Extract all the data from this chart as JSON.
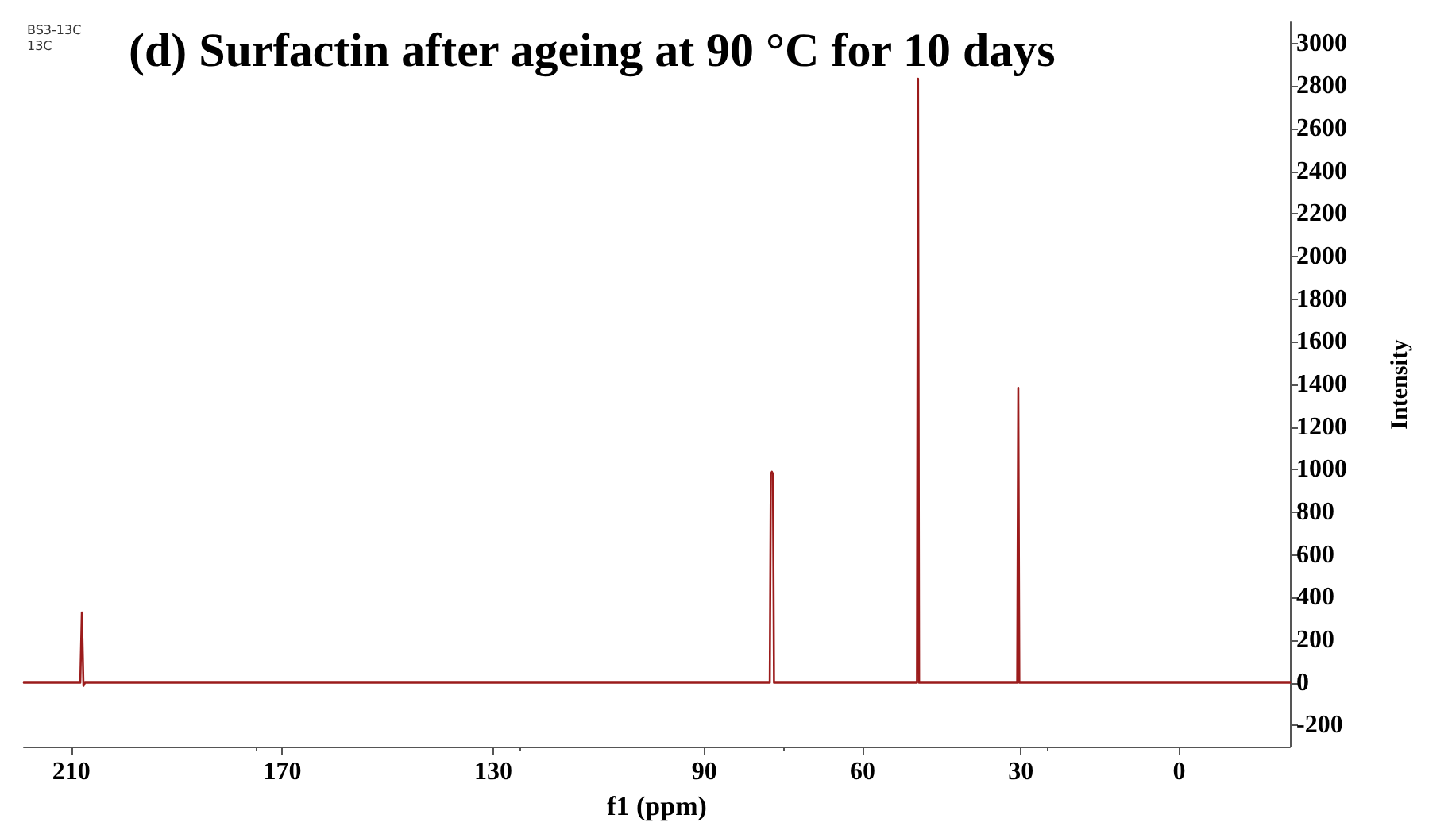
{
  "chart_data": {
    "type": "line",
    "title": "(d) Surfactin after ageing at 90 °C for 10 days",
    "annotations": [
      "BS3-13C",
      "13C"
    ],
    "xlabel": "f1 (ppm)",
    "ylabel": "Intensity",
    "series": [
      {
        "color": "#9b1b1b",
        "x": [
          219,
          208.3,
          208,
          207.7,
          207.4,
          77.6,
          77.4,
          77.2,
          77.0,
          76.8,
          49.7,
          49.5,
          49.3,
          30.7,
          30.5,
          30.3,
          -21
        ],
        "values": [
          0,
          0,
          330,
          -15,
          0,
          0,
          980,
          990,
          980,
          0,
          0,
          2835,
          0,
          0,
          1384,
          0,
          0
        ]
      }
    ],
    "xlim": [
      219,
      -21
    ],
    "xticks": [
      210,
      170,
      130,
      90,
      60,
      30,
      0
    ],
    "ylim": [
      -300,
      3100
    ],
    "yticks": [
      -200,
      0,
      200,
      400,
      600,
      800,
      1000,
      1200,
      1400,
      1600,
      1800,
      2000,
      2200,
      2400,
      2600,
      2800,
      3000
    ],
    "grid": false,
    "marker": "none",
    "line_style": "solid"
  }
}
